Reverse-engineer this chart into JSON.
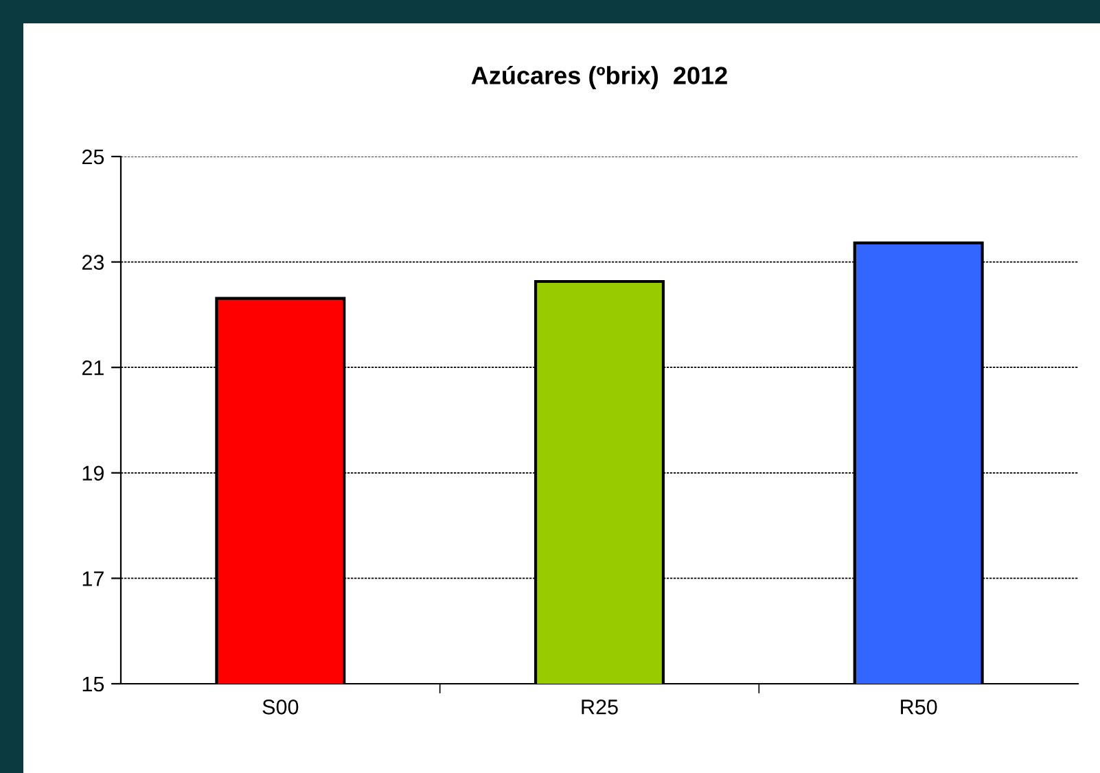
{
  "chart_data": {
    "type": "bar",
    "title": "Azúcares (ºbrix)  2012",
    "categories": [
      "S00",
      "R25",
      "R50"
    ],
    "values": [
      22.31,
      22.63,
      23.36
    ],
    "colors": [
      "#ff0000",
      "#99cc00",
      "#3366ff"
    ],
    "ylim": [
      15,
      25
    ],
    "yticks": [
      15,
      17,
      19,
      21,
      23,
      25
    ],
    "grid": "y"
  }
}
